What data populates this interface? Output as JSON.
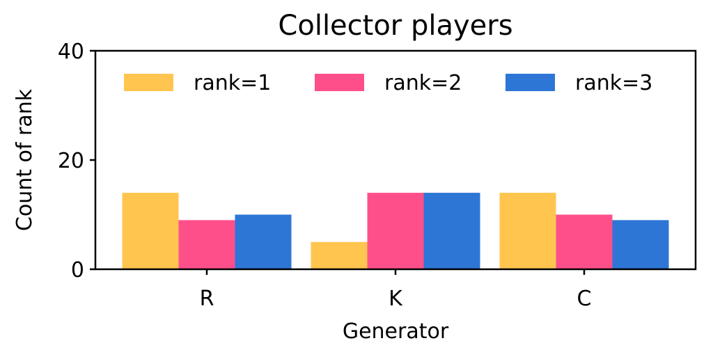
{
  "chart_data": {
    "type": "bar",
    "title": "Collector players",
    "xlabel": "Generator",
    "ylabel": "Count of rank",
    "categories": [
      "R",
      "K",
      "C"
    ],
    "series": [
      {
        "name": "rank=1",
        "values": [
          14,
          5,
          14
        ],
        "color": "#FFC54F"
      },
      {
        "name": "rank=2",
        "values": [
          9,
          14,
          10
        ],
        "color": "#FF4F8B"
      },
      {
        "name": "rank=3",
        "values": [
          10,
          14,
          9
        ],
        "color": "#2D76D6"
      }
    ],
    "ylim": [
      0,
      40
    ],
    "yticks": [
      0,
      20,
      40
    ],
    "grid": false,
    "legend_position": "top"
  }
}
